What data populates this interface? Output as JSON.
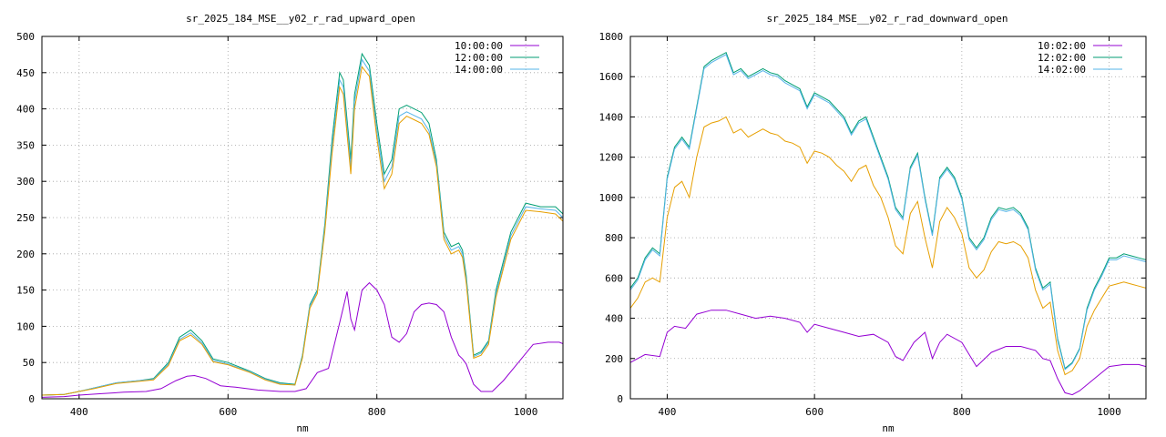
{
  "chart_data": [
    {
      "type": "line",
      "title": "sr_2025_184_MSE__y02_r_rad_upward_open",
      "xlabel": "nm",
      "ylabel": "",
      "xlim": [
        350,
        1050
      ],
      "ylim": [
        0,
        500
      ],
      "xticks": [
        400,
        600,
        800,
        1000
      ],
      "yticks": [
        0,
        50,
        100,
        150,
        200,
        250,
        300,
        350,
        400,
        450,
        500
      ],
      "grid": true,
      "legend_position": "top-right",
      "series": [
        {
          "name": "10:00:00",
          "color": "#9400d3",
          "x": [
            350,
            380,
            400,
            430,
            460,
            490,
            510,
            530,
            545,
            555,
            570,
            590,
            610,
            640,
            670,
            690,
            705,
            720,
            735,
            750,
            760,
            765,
            770,
            780,
            790,
            800,
            810,
            820,
            830,
            840,
            850,
            860,
            870,
            880,
            890,
            900,
            910,
            915,
            920,
            930,
            940,
            955,
            970,
            990,
            1010,
            1030,
            1045,
            1050
          ],
          "y": [
            2,
            3,
            5,
            7,
            9,
            10,
            14,
            25,
            31,
            32,
            28,
            18,
            16,
            12,
            10,
            10,
            14,
            36,
            42,
            105,
            148,
            110,
            95,
            150,
            160,
            150,
            130,
            85,
            78,
            90,
            120,
            130,
            132,
            130,
            120,
            85,
            60,
            55,
            48,
            20,
            10,
            10,
            25,
            50,
            75,
            78,
            78,
            76
          ]
        },
        {
          "name": "12:00:00",
          "color": "#009e73",
          "x": [
            350,
            380,
            400,
            420,
            450,
            480,
            500,
            520,
            535,
            550,
            565,
            580,
            600,
            630,
            650,
            670,
            690,
            700,
            710,
            720,
            730,
            740,
            750,
            755,
            765,
            770,
            780,
            790,
            800,
            810,
            820,
            830,
            840,
            850,
            860,
            870,
            880,
            890,
            900,
            910,
            915,
            920,
            930,
            940,
            950,
            960,
            980,
            1000,
            1020,
            1040,
            1050
          ],
          "y": [
            5,
            6,
            10,
            15,
            22,
            25,
            28,
            50,
            85,
            95,
            80,
            55,
            50,
            38,
            28,
            22,
            20,
            60,
            130,
            150,
            240,
            360,
            450,
            440,
            330,
            420,
            476,
            460,
            380,
            310,
            330,
            400,
            405,
            400,
            395,
            380,
            330,
            230,
            210,
            215,
            205,
            170,
            60,
            65,
            80,
            150,
            230,
            270,
            265,
            265,
            255
          ]
        },
        {
          "name": "14:00:00",
          "color": "#56b4e9",
          "x": [
            350,
            380,
            400,
            420,
            450,
            480,
            500,
            520,
            535,
            550,
            565,
            580,
            600,
            630,
            650,
            670,
            690,
            700,
            710,
            720,
            730,
            740,
            750,
            755,
            765,
            770,
            780,
            790,
            800,
            810,
            820,
            830,
            840,
            850,
            860,
            870,
            880,
            890,
            900,
            910,
            915,
            920,
            930,
            940,
            950,
            960,
            980,
            1000,
            1020,
            1040,
            1050
          ],
          "y": [
            5,
            6,
            10,
            15,
            22,
            25,
            27,
            48,
            82,
            91,
            77,
            53,
            48,
            37,
            27,
            21,
            19,
            58,
            128,
            148,
            235,
            350,
            440,
            430,
            320,
            410,
            468,
            452,
            370,
            300,
            320,
            390,
            396,
            391,
            386,
            370,
            325,
            225,
            205,
            210,
            200,
            165,
            58,
            63,
            78,
            145,
            225,
            265,
            262,
            260,
            250
          ]
        },
        {
          "name": "",
          "color": "#e69f00",
          "x": [
            350,
            380,
            400,
            420,
            450,
            480,
            500,
            520,
            535,
            550,
            565,
            580,
            600,
            630,
            650,
            670,
            690,
            700,
            710,
            720,
            730,
            740,
            750,
            755,
            765,
            770,
            780,
            790,
            800,
            810,
            820,
            830,
            840,
            850,
            860,
            870,
            880,
            890,
            900,
            910,
            915,
            920,
            930,
            940,
            950,
            960,
            980,
            1000,
            1020,
            1040,
            1050
          ],
          "y": [
            5,
            6,
            10,
            14,
            21,
            24,
            26,
            46,
            80,
            88,
            75,
            51,
            47,
            36,
            26,
            20,
            19,
            56,
            125,
            145,
            230,
            340,
            430,
            420,
            310,
            400,
            458,
            445,
            360,
            290,
            310,
            380,
            390,
            385,
            380,
            365,
            320,
            220,
            200,
            205,
            195,
            160,
            56,
            60,
            75,
            140,
            220,
            260,
            258,
            255,
            245
          ]
        }
      ]
    },
    {
      "type": "line",
      "title": "sr_2025_184_MSE__y02_r_rad_downward_open",
      "xlabel": "nm",
      "ylabel": "",
      "xlim": [
        350,
        1050
      ],
      "ylim": [
        0,
        1800
      ],
      "xticks": [
        400,
        600,
        800,
        1000
      ],
      "yticks": [
        0,
        200,
        400,
        600,
        800,
        1000,
        1200,
        1400,
        1600,
        1800
      ],
      "grid": true,
      "legend_position": "top-right",
      "series": [
        {
          "name": "10:02:00",
          "color": "#9400d3",
          "x": [
            350,
            370,
            390,
            400,
            410,
            425,
            440,
            460,
            480,
            500,
            520,
            540,
            560,
            580,
            590,
            600,
            620,
            640,
            660,
            680,
            700,
            710,
            720,
            735,
            750,
            760,
            770,
            780,
            800,
            810,
            820,
            840,
            860,
            880,
            900,
            910,
            920,
            930,
            940,
            950,
            960,
            980,
            1000,
            1020,
            1040,
            1050
          ],
          "y": [
            180,
            220,
            210,
            330,
            360,
            350,
            420,
            440,
            440,
            420,
            400,
            410,
            400,
            380,
            330,
            370,
            350,
            330,
            310,
            320,
            280,
            210,
            190,
            280,
            330,
            200,
            280,
            320,
            280,
            220,
            160,
            230,
            260,
            260,
            240,
            200,
            190,
            100,
            30,
            20,
            40,
            100,
            160,
            170,
            170,
            160
          ]
        },
        {
          "name": "12:02:00",
          "color": "#009e73",
          "x": [
            350,
            360,
            370,
            380,
            390,
            400,
            410,
            420,
            430,
            440,
            450,
            460,
            470,
            480,
            490,
            500,
            510,
            520,
            530,
            540,
            550,
            560,
            570,
            580,
            590,
            600,
            610,
            620,
            630,
            640,
            650,
            660,
            670,
            680,
            690,
            700,
            710,
            720,
            730,
            740,
            750,
            760,
            770,
            780,
            790,
            800,
            810,
            820,
            830,
            840,
            850,
            860,
            870,
            880,
            890,
            900,
            910,
            920,
            930,
            940,
            950,
            960,
            970,
            980,
            990,
            1000,
            1010,
            1020,
            1030,
            1040,
            1050
          ],
          "y": [
            550,
            600,
            700,
            750,
            720,
            1100,
            1250,
            1300,
            1250,
            1450,
            1650,
            1680,
            1700,
            1720,
            1620,
            1640,
            1600,
            1620,
            1640,
            1620,
            1610,
            1580,
            1560,
            1540,
            1450,
            1520,
            1500,
            1480,
            1440,
            1400,
            1320,
            1380,
            1400,
            1300,
            1200,
            1100,
            950,
            900,
            1150,
            1220,
            1000,
            820,
            1100,
            1150,
            1100,
            1000,
            800,
            750,
            800,
            900,
            950,
            940,
            950,
            920,
            850,
            650,
            550,
            580,
            300,
            150,
            180,
            250,
            450,
            550,
            620,
            700,
            700,
            720,
            710,
            700,
            690
          ]
        },
        {
          "name": "14:02:00",
          "color": "#56b4e9",
          "x": [
            350,
            360,
            370,
            380,
            390,
            400,
            410,
            420,
            430,
            440,
            450,
            460,
            470,
            480,
            490,
            500,
            510,
            520,
            530,
            540,
            550,
            560,
            570,
            580,
            590,
            600,
            610,
            620,
            630,
            640,
            650,
            660,
            670,
            680,
            690,
            700,
            710,
            720,
            730,
            740,
            750,
            760,
            770,
            780,
            790,
            800,
            810,
            820,
            830,
            840,
            850,
            860,
            870,
            880,
            890,
            900,
            910,
            920,
            930,
            940,
            950,
            960,
            970,
            980,
            990,
            1000,
            1010,
            1020,
            1030,
            1040,
            1050
          ],
          "y": [
            540,
            590,
            690,
            740,
            710,
            1090,
            1240,
            1290,
            1240,
            1440,
            1640,
            1670,
            1690,
            1710,
            1610,
            1630,
            1590,
            1610,
            1630,
            1610,
            1600,
            1570,
            1550,
            1530,
            1440,
            1510,
            1490,
            1470,
            1430,
            1390,
            1310,
            1370,
            1390,
            1290,
            1190,
            1090,
            940,
            890,
            1140,
            1210,
            990,
            810,
            1090,
            1140,
            1090,
            990,
            790,
            740,
            790,
            890,
            940,
            930,
            940,
            910,
            840,
            640,
            540,
            570,
            290,
            145,
            175,
            245,
            440,
            540,
            610,
            690,
            690,
            710,
            700,
            690,
            680
          ]
        },
        {
          "name": "",
          "color": "#e69f00",
          "x": [
            350,
            360,
            370,
            380,
            390,
            400,
            410,
            420,
            430,
            440,
            450,
            460,
            470,
            480,
            490,
            500,
            510,
            520,
            530,
            540,
            550,
            560,
            570,
            580,
            590,
            600,
            610,
            620,
            630,
            640,
            650,
            660,
            670,
            680,
            690,
            700,
            710,
            720,
            730,
            740,
            750,
            760,
            770,
            780,
            790,
            800,
            810,
            820,
            830,
            840,
            850,
            860,
            870,
            880,
            890,
            900,
            910,
            920,
            930,
            940,
            950,
            960,
            970,
            980,
            990,
            1000,
            1010,
            1020,
            1030,
            1040,
            1050
          ],
          "y": [
            450,
            500,
            580,
            600,
            580,
            900,
            1050,
            1080,
            1000,
            1200,
            1350,
            1370,
            1380,
            1400,
            1320,
            1340,
            1300,
            1320,
            1340,
            1320,
            1310,
            1280,
            1270,
            1250,
            1170,
            1230,
            1220,
            1200,
            1160,
            1130,
            1080,
            1140,
            1160,
            1060,
            1000,
            900,
            760,
            720,
            920,
            980,
            800,
            650,
            880,
            950,
            900,
            820,
            650,
            600,
            640,
            730,
            780,
            770,
            780,
            760,
            700,
            540,
            450,
            480,
            240,
            120,
            140,
            200,
            360,
            440,
            500,
            560,
            570,
            580,
            570,
            560,
            550
          ]
        }
      ]
    }
  ]
}
